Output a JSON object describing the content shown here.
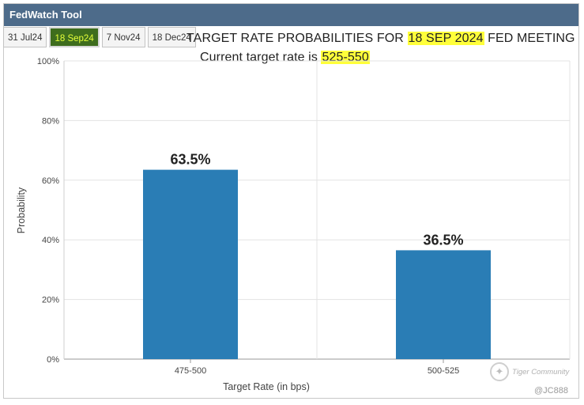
{
  "window": {
    "title": "FedWatch Tool"
  },
  "tabs": [
    {
      "label": "31 Jul24",
      "active": false
    },
    {
      "label": "18 Sep24",
      "active": true
    },
    {
      "label": "7 Nov24",
      "active": false
    },
    {
      "label": "18 Dec24",
      "active": false
    }
  ],
  "heading": {
    "prefix": "TARGET RATE PROBABILITIES FOR ",
    "date": "18 SEP 2024",
    "suffix": " FED MEETING",
    "current_prefix": "Current target rate is ",
    "current_rate": "525-550",
    "highlight_color": "#ffff3a"
  },
  "chart_data": {
    "type": "bar",
    "categories": [
      "475-500",
      "500-525"
    ],
    "values": [
      63.5,
      36.5
    ],
    "data_labels": [
      "63.5%",
      "36.5%"
    ],
    "xlabel": "Target Rate (in bps)",
    "ylabel": "Probability",
    "ylim": [
      0,
      100
    ],
    "yticks": [
      0,
      20,
      40,
      60,
      80,
      100
    ],
    "ytick_labels": [
      "0%",
      "20%",
      "40%",
      "60%",
      "80%",
      "100%"
    ],
    "grid": true,
    "bar_color": "#2a7db5"
  },
  "watermark": {
    "text": "Tiger Community",
    "handle": "@JC888"
  },
  "colors": {
    "titlebar": "#4d6b8a",
    "active_tab_bg": "#3e6d1d",
    "active_tab_text": "#e6ff3a"
  }
}
